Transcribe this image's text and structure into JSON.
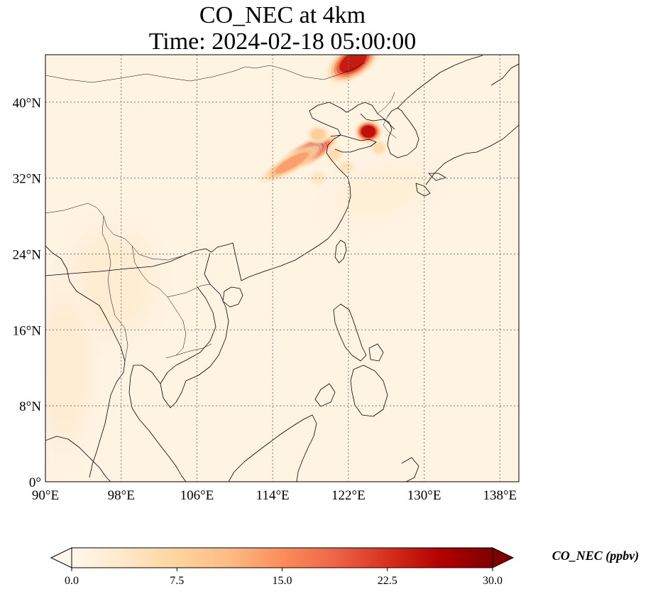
{
  "title": {
    "line1": "CO_NEC at 4km",
    "line2": "Time: 2024-02-18 05:00:00"
  },
  "map": {
    "projection": "PlateCarree",
    "lon_range": [
      90,
      140
    ],
    "lat_range": [
      0,
      45
    ],
    "lon_ticks": [
      "90°E",
      "98°E",
      "106°E",
      "114°E",
      "122°E",
      "130°E",
      "138°E"
    ],
    "lat_ticks": [
      "0°",
      "8°N",
      "16°N",
      "24°N",
      "32°N",
      "40°N"
    ],
    "gridlines": "dotted",
    "coastlines": true,
    "borders": true
  },
  "chart_data": {
    "type": "heatmap",
    "variable": "CO_NEC",
    "units": "ppbv",
    "colormap": "OrRd",
    "vmin": 0.0,
    "vmax": 30.0,
    "background_level": 1.0,
    "plumes": [
      {
        "lon": 122.5,
        "lat": 44.3,
        "value": 29,
        "sx": 1.3,
        "sy": 0.7,
        "angle": -35
      },
      {
        "lon": 117.8,
        "lat": 34.7,
        "value": 30,
        "sx": 1.4,
        "sy": 0.5,
        "angle": -28
      },
      {
        "lon": 116.0,
        "lat": 33.6,
        "value": 16,
        "sx": 1.6,
        "sy": 0.4,
        "angle": -30
      },
      {
        "lon": 124.1,
        "lat": 36.9,
        "value": 30,
        "sx": 0.6,
        "sy": 0.5,
        "angle": 0
      },
      {
        "lon": 118.8,
        "lat": 36.6,
        "value": 10,
        "sx": 0.5,
        "sy": 0.4,
        "angle": 0
      },
      {
        "lon": 120.5,
        "lat": 34.5,
        "value": 7,
        "sx": 0.4,
        "sy": 0.4,
        "angle": 0
      },
      {
        "lon": 125.2,
        "lat": 35.2,
        "value": 7,
        "sx": 0.4,
        "sy": 0.4,
        "angle": 0
      },
      {
        "lon": 121.8,
        "lat": 33.0,
        "value": 6,
        "sx": 0.5,
        "sy": 0.4,
        "angle": 0
      },
      {
        "lon": 118.8,
        "lat": 32.0,
        "value": 5,
        "sx": 0.4,
        "sy": 0.4,
        "angle": 0
      },
      {
        "lon": 126.5,
        "lat": 33.3,
        "value": 4,
        "sx": 0.5,
        "sy": 0.3,
        "angle": 0
      },
      {
        "lon": 125.5,
        "lat": 30.5,
        "value": 2.5,
        "sx": 3.0,
        "sy": 1.5,
        "angle": -20
      },
      {
        "lon": 97.0,
        "lat": 21.0,
        "value": 3,
        "sx": 2.5,
        "sy": 3.0,
        "angle": 0
      },
      {
        "lon": 92.0,
        "lat": 12.0,
        "value": 3,
        "sx": 1.5,
        "sy": 4.5,
        "angle": 0
      }
    ]
  },
  "colorbar": {
    "ticks": [
      "0.0",
      "7.5",
      "15.0",
      "22.5",
      "30.0"
    ],
    "extend": "both",
    "label": "CO_NEC (ppbv)"
  }
}
